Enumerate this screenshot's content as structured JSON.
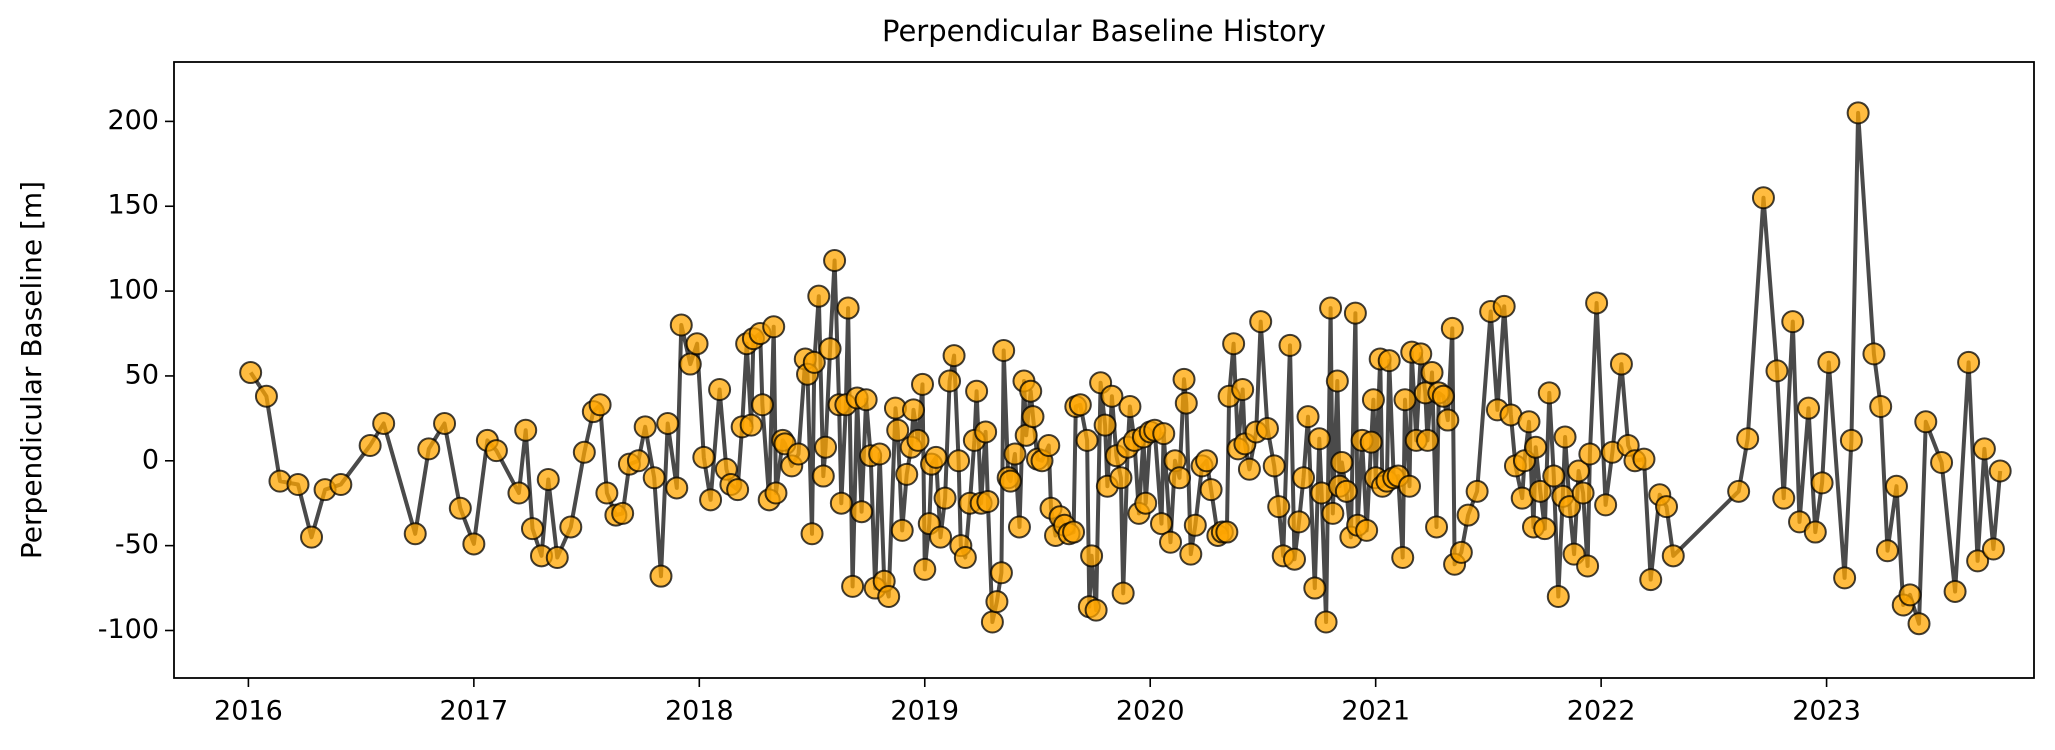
{
  "chart_data": {
    "type": "line",
    "title": "Perpendicular Baseline History",
    "ylabel": "Perpendicular Baseline [m]",
    "color": "#ffa500",
    "line_color": "#404040",
    "marker": true,
    "xlim": [
      2015.67,
      2023.92
    ],
    "xticks": [
      2016,
      2017,
      2018,
      2019,
      2020,
      2021,
      2022,
      2023
    ],
    "ylim": [
      -128,
      235
    ],
    "yticks": [
      -100,
      -50,
      0,
      50,
      100,
      150,
      200
    ],
    "grid": false,
    "x": [
      2016.01,
      2016.08,
      2016.14,
      2016.22,
      2016.28,
      2016.34,
      2016.41,
      2016.54,
      2016.6,
      2016.74,
      2016.8,
      2016.87,
      2016.94,
      2017.0,
      2017.06,
      2017.1,
      2017.2,
      2017.23,
      2017.26,
      2017.3,
      2017.33,
      2017.37,
      2017.43,
      2017.49,
      2017.53,
      2017.56,
      2017.59,
      2017.63,
      2017.66,
      2017.69,
      2017.73,
      2017.76,
      2017.8,
      2017.83,
      2017.86,
      2017.9,
      2017.92,
      2017.96,
      2017.99,
      2018.02,
      2018.05,
      2018.09,
      2018.12,
      2018.14,
      2018.17,
      2018.19,
      2018.21,
      2018.23,
      2018.24,
      2018.27,
      2018.28,
      2018.31,
      2018.33,
      2018.34,
      2018.37,
      2018.38,
      2018.41,
      2018.44,
      2018.47,
      2018.48,
      2018.5,
      2018.51,
      2018.53,
      2018.55,
      2018.56,
      2018.58,
      2018.6,
      2018.62,
      2018.63,
      2018.65,
      2018.66,
      2018.68,
      2018.7,
      2018.72,
      2018.74,
      2018.76,
      2018.78,
      2018.8,
      2018.82,
      2018.84,
      2018.87,
      2018.88,
      2018.9,
      2018.92,
      2018.94,
      2018.95,
      2018.97,
      2018.99,
      2019.0,
      2019.02,
      2019.03,
      2019.05,
      2019.07,
      2019.09,
      2019.11,
      2019.13,
      2019.15,
      2019.16,
      2019.18,
      2019.2,
      2019.22,
      2019.23,
      2019.25,
      2019.27,
      2019.28,
      2019.3,
      2019.32,
      2019.34,
      2019.35,
      2019.37,
      2019.38,
      2019.4,
      2019.42,
      2019.44,
      2019.45,
      2019.47,
      2019.48,
      2019.5,
      2019.52,
      2019.55,
      2019.56,
      2019.58,
      2019.6,
      2019.62,
      2019.64,
      2019.66,
      2019.67,
      2019.69,
      2019.72,
      2019.73,
      2019.74,
      2019.76,
      2019.78,
      2019.8,
      2019.81,
      2019.83,
      2019.85,
      2019.87,
      2019.88,
      2019.9,
      2019.91,
      2019.93,
      2019.95,
      2019.97,
      2019.98,
      2020.0,
      2020.02,
      2020.05,
      2020.06,
      2020.09,
      2020.11,
      2020.13,
      2020.15,
      2020.16,
      2020.18,
      2020.2,
      2020.23,
      2020.25,
      2020.27,
      2020.3,
      2020.32,
      2020.34,
      2020.35,
      2020.37,
      2020.39,
      2020.41,
      2020.42,
      2020.44,
      2020.47,
      2020.49,
      2020.52,
      2020.55,
      2020.57,
      2020.59,
      2020.62,
      2020.64,
      2020.66,
      2020.68,
      2020.7,
      2020.73,
      2020.75,
      2020.76,
      2020.78,
      2020.8,
      2020.81,
      2020.83,
      2020.84,
      2020.85,
      2020.87,
      2020.89,
      2020.91,
      2020.92,
      2020.94,
      2020.96,
      2020.98,
      2020.99,
      2021.0,
      2021.02,
      2021.03,
      2021.05,
      2021.06,
      2021.08,
      2021.1,
      2021.12,
      2021.13,
      2021.15,
      2021.16,
      2021.18,
      2021.2,
      2021.22,
      2021.23,
      2021.25,
      2021.27,
      2021.28,
      2021.3,
      2021.32,
      2021.34,
      2021.35,
      2021.38,
      2021.41,
      2021.45,
      2021.51,
      2021.54,
      2021.57,
      2021.6,
      2021.62,
      2021.65,
      2021.66,
      2021.68,
      2021.7,
      2021.71,
      2021.73,
      2021.75,
      2021.77,
      2021.79,
      2021.81,
      2021.83,
      2021.84,
      2021.86,
      2021.88,
      2021.9,
      2021.92,
      2021.94,
      2021.95,
      2021.98,
      2022.02,
      2022.05,
      2022.09,
      2022.12,
      2022.15,
      2022.19,
      2022.22,
      2022.26,
      2022.29,
      2022.32,
      2022.61,
      2022.65,
      2022.72,
      2022.78,
      2022.81,
      2022.85,
      2022.88,
      2022.92,
      2022.95,
      2022.98,
      2023.01,
      2023.08,
      2023.11,
      2023.14,
      2023.21,
      2023.24,
      2023.27,
      2023.31,
      2023.34,
      2023.37,
      2023.41,
      2023.44,
      2023.51,
      2023.57,
      2023.63,
      2023.67,
      2023.7,
      2023.74,
      2023.77
    ],
    "values": [
      52,
      38,
      -12,
      -14,
      -45,
      -17,
      -14,
      9,
      22,
      -43,
      7,
      22,
      -28,
      -49,
      12,
      6,
      -19,
      18,
      -40,
      -56,
      -11,
      -57,
      -39,
      5,
      29,
      33,
      -19,
      -32,
      -31,
      -2,
      0,
      20,
      -10,
      -68,
      22,
      -16,
      80,
      57,
      69,
      2,
      -23,
      42,
      -5,
      -14,
      -17,
      20,
      69,
      21,
      72,
      75,
      33,
      -23,
      79,
      -19,
      12,
      10,
      -3,
      4,
      60,
      51,
      -43,
      58,
      97,
      -9,
      8,
      66,
      118,
      33,
      -25,
      33,
      90,
      -74,
      37,
      -30,
      36,
      3,
      -75,
      4,
      -71,
      -80,
      31,
      18,
      -41,
      -8,
      8,
      30,
      12,
      45,
      -64,
      -37,
      -2,
      2,
      -45,
      -22,
      47,
      62,
      0,
      -50,
      -57,
      -25,
      12,
      41,
      -25,
      17,
      -24,
      -95,
      -83,
      -66,
      65,
      -10,
      -12,
      4,
      -39,
      47,
      15,
      41,
      26,
      1,
      0,
      9,
      -28,
      -44,
      -33,
      -38,
      -43,
      -42,
      32,
      33,
      12,
      -86,
      -56,
      -88,
      46,
      21,
      -15,
      38,
      3,
      -10,
      -78,
      8,
      32,
      12,
      -31,
      14,
      -25,
      17,
      18,
      -37,
      16,
      -48,
      0,
      -10,
      48,
      34,
      -55,
      -38,
      -3,
      0,
      -17,
      -44,
      -42,
      -42,
      38,
      69,
      7,
      42,
      10,
      -5,
      17,
      82,
      19,
      -3,
      -27,
      -56,
      68,
      -58,
      -36,
      -10,
      26,
      -75,
      13,
      -19,
      -95,
      90,
      -31,
      47,
      -15,
      -1,
      -18,
      -45,
      87,
      -38,
      12,
      -41,
      11,
      36,
      -10,
      60,
      -15,
      -12,
      59,
      -10,
      -9,
      -57,
      36,
      -15,
      64,
      12,
      63,
      40,
      12,
      52,
      -39,
      40,
      38,
      24,
      78,
      -61,
      -54,
      -32,
      -18,
      88,
      30,
      91,
      27,
      -3,
      -22,
      0,
      23,
      -39,
      8,
      -18,
      -40,
      40,
      -9,
      -80,
      -21,
      14,
      -27,
      -55,
      -6,
      -19,
      -62,
      4,
      93,
      -26,
      5,
      57,
      9,
      0,
      1,
      -70,
      -20,
      -27,
      -56,
      -18,
      13,
      155,
      53,
      -22,
      82,
      -36,
      31,
      -42,
      -13,
      58,
      -69,
      12,
      205,
      63,
      32,
      -53,
      -15,
      -85,
      -79,
      -96,
      23,
      -1,
      -77,
      58,
      -59,
      7,
      -52,
      -6
    ]
  }
}
